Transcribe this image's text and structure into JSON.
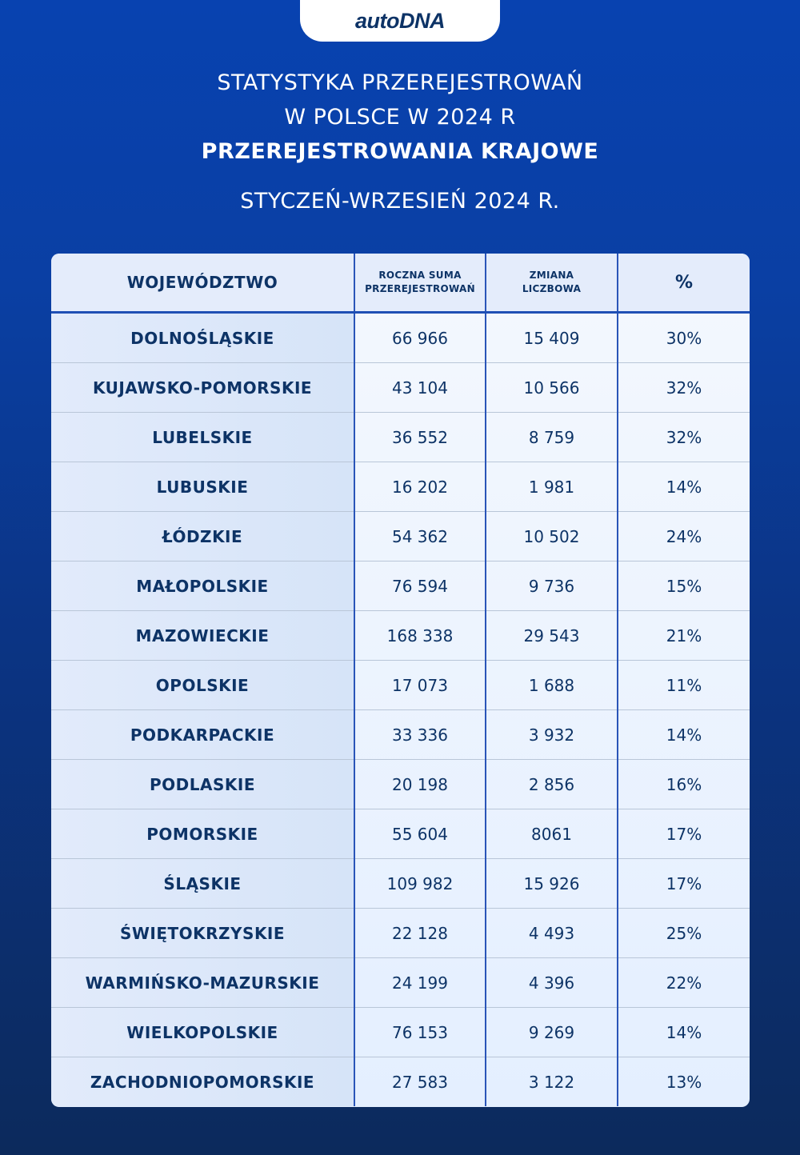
{
  "logo": {
    "text": "autoDNA"
  },
  "header": {
    "title_line1": "STATYSTYKA PRZEREJESTROWAŃ",
    "title_line2": "W POLSCE W 2024 R",
    "title_line3": "PRZEREJESTROWANIA KRAJOWE",
    "period": "STYCZEŃ-WRZESIEŃ 2024 R."
  },
  "table": {
    "headers": {
      "region": "WOJEWÓDZTWO",
      "annual_sum_line1": "ROCZNA SUMA",
      "annual_sum_line2": "PRZEREJESTROWAŃ",
      "change_line1": "ZMIANA",
      "change_line2": "LICZBOWA",
      "percent": "%"
    },
    "rows": [
      {
        "region": "DOLNOŚLĄSKIE",
        "annual_sum": "66 966",
        "change": "15 409",
        "percent": "30%"
      },
      {
        "region": "KUJAWSKO-POMORSKIE",
        "annual_sum": "43 104",
        "change": "10 566",
        "percent": "32%"
      },
      {
        "region": "LUBELSKIE",
        "annual_sum": "36 552",
        "change": "8 759",
        "percent": "32%"
      },
      {
        "region": "LUBUSKIE",
        "annual_sum": "16 202",
        "change": "1 981",
        "percent": "14%"
      },
      {
        "region": "ŁÓDZKIE",
        "annual_sum": "54 362",
        "change": "10 502",
        "percent": "24%"
      },
      {
        "region": "MAŁOPOLSKIE",
        "annual_sum": "76 594",
        "change": "9 736",
        "percent": "15%"
      },
      {
        "region": "MAZOWIECKIE",
        "annual_sum": "168 338",
        "change": "29 543",
        "percent": "21%"
      },
      {
        "region": "OPOLSKIE",
        "annual_sum": "17 073",
        "change": "1 688",
        "percent": "11%"
      },
      {
        "region": "PODKARPACKIE",
        "annual_sum": "33 336",
        "change": "3 932",
        "percent": "14%"
      },
      {
        "region": "PODLASKIE",
        "annual_sum": "20 198",
        "change": "2 856",
        "percent": "16%"
      },
      {
        "region": "POMORSKIE",
        "annual_sum": "55 604",
        "change": "8061",
        "percent": "17%"
      },
      {
        "region": "ŚLĄSKIE",
        "annual_sum": "109 982",
        "change": "15 926",
        "percent": "17%"
      },
      {
        "region": "ŚWIĘTOKRZYSKIE",
        "annual_sum": "22 128",
        "change": "4 493",
        "percent": "25%"
      },
      {
        "region": "WARMIŃSKO-MAZURSKIE",
        "annual_sum": "24 199",
        "change": "4 396",
        "percent": "22%"
      },
      {
        "region": "WIELKOPOLSKIE",
        "annual_sum": "76 153",
        "change": "9 269",
        "percent": "14%"
      },
      {
        "region": "ZACHODNIOPOMORSKIE",
        "annual_sum": "27 583",
        "change": "3 122",
        "percent": "13%"
      }
    ]
  },
  "colors": {
    "background_top": "#0842b0",
    "background_bottom": "#0c2a5c",
    "text_dark": "#0d3366",
    "divider_blue": "#2a55b8"
  },
  "chart_data": {
    "type": "table",
    "title": "STATYSTYKA PRZEREJESTROWAŃ W POLSCE W 2024 R — PRZEREJESTROWANIA KRAJOWE",
    "subtitle": "STYCZEŃ-WRZESIEŃ 2024 R.",
    "columns": [
      "WOJEWÓDZTWO",
      "ROCZNA SUMA PRZEREJESTROWAŃ",
      "ZMIANA LICZBOWA",
      "%"
    ],
    "categories": [
      "DOLNOŚLĄSKIE",
      "KUJAWSKO-POMORSKIE",
      "LUBELSKIE",
      "LUBUSKIE",
      "ŁÓDZKIE",
      "MAŁOPOLSKIE",
      "MAZOWIECKIE",
      "OPOLSKIE",
      "PODKARPACKIE",
      "PODLASKIE",
      "POMORSKIE",
      "ŚLĄSKIE",
      "ŚWIĘTOKRZYSKIE",
      "WARMIŃSKO-MAZURSKIE",
      "WIELKOPOLSKIE",
      "ZACHODNIOPOMORSKIE"
    ],
    "series": [
      {
        "name": "ROCZNA SUMA PRZEREJESTROWAŃ",
        "values": [
          66966,
          43104,
          36552,
          16202,
          54362,
          76594,
          168338,
          17073,
          33336,
          20198,
          55604,
          109982,
          22128,
          24199,
          76153,
          27583
        ]
      },
      {
        "name": "ZMIANA LICZBOWA",
        "values": [
          15409,
          10566,
          8759,
          1981,
          10502,
          9736,
          29543,
          1688,
          3932,
          2856,
          8061,
          15926,
          4493,
          4396,
          9269,
          3122
        ]
      },
      {
        "name": "%",
        "values": [
          30,
          32,
          32,
          14,
          24,
          15,
          21,
          11,
          14,
          16,
          17,
          17,
          25,
          22,
          14,
          13
        ]
      }
    ]
  }
}
